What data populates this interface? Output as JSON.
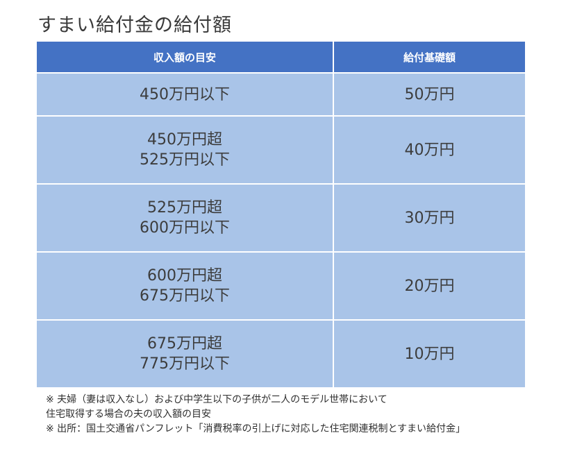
{
  "title": "すまい給付金の給付額",
  "table": {
    "headers": [
      "収入額の目安",
      "給付基礎額"
    ],
    "rows": [
      {
        "income": [
          "450万円以下"
        ],
        "amount": "50万円"
      },
      {
        "income": [
          "450万円超",
          "525万円以下"
        ],
        "amount": "40万円"
      },
      {
        "income": [
          "525万円超",
          "600万円以下"
        ],
        "amount": "30万円"
      },
      {
        "income": [
          "600万円超",
          "675万円以下"
        ],
        "amount": "20万円"
      },
      {
        "income": [
          "675万円超",
          "775万円以下"
        ],
        "amount": "10万円"
      }
    ]
  },
  "notes": [
    "※ 夫婦（妻は収入なし）および中学生以下の子供が二人のモデル世帯において",
    "住宅取得する場合の夫の収入額の目安",
    "※ 出所：国土交通省パンフレット「消費税率の引上げに対応した住宅関連税制とすまい給付金」"
  ],
  "colors": {
    "header_bg": "#4472c4",
    "cell_bg": "#a9c4e8"
  }
}
